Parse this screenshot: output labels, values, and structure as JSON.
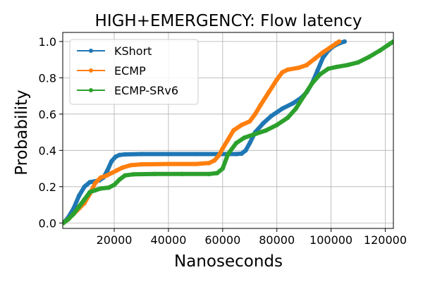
{
  "chart_data": {
    "type": "line",
    "title": "HIGH+EMERGENCY: Flow latency",
    "xlabel": "Nanoseconds",
    "ylabel": "Probability",
    "xlim": [
      1000,
      123000
    ],
    "ylim": [
      -0.03,
      1.05
    ],
    "xticks": [
      20000,
      40000,
      60000,
      80000,
      100000,
      120000
    ],
    "xtick_labels": [
      "20000",
      "40000",
      "60000",
      "80000",
      "100000",
      "120000"
    ],
    "yticks": [
      0.0,
      0.2,
      0.4,
      0.6,
      0.8,
      1.0
    ],
    "ytick_labels": [
      "0.0",
      "0.2",
      "0.4",
      "0.6",
      "0.8",
      "1.0"
    ],
    "grid": true,
    "legend_position": "upper-left",
    "series": [
      {
        "name": "KShort",
        "color": "#1f77b4",
        "x": [
          1200,
          3000,
          5000,
          7000,
          9000,
          11000,
          13000,
          14500,
          16000,
          17500,
          19000,
          20500,
          22000,
          24000,
          30000,
          40000,
          50000,
          58000,
          62000,
          65000,
          67000,
          68500,
          70000,
          72000,
          75000,
          78000,
          82000,
          86000,
          89000,
          91000,
          93000,
          95000,
          97000,
          99000,
          101000,
          103000,
          105000
        ],
        "y": [
          0.0,
          0.03,
          0.08,
          0.15,
          0.2,
          0.225,
          0.23,
          0.235,
          0.25,
          0.29,
          0.34,
          0.365,
          0.375,
          0.378,
          0.38,
          0.38,
          0.38,
          0.38,
          0.38,
          0.38,
          0.382,
          0.4,
          0.44,
          0.5,
          0.55,
          0.59,
          0.63,
          0.66,
          0.69,
          0.72,
          0.77,
          0.84,
          0.91,
          0.95,
          0.975,
          0.99,
          1.0
        ]
      },
      {
        "name": "ECMP",
        "color": "#ff7f0e",
        "x": [
          1200,
          3000,
          5000,
          7000,
          9000,
          11000,
          13000,
          15000,
          17000,
          19000,
          21000,
          23000,
          26000,
          30000,
          40000,
          50000,
          55000,
          57000,
          58500,
          60000,
          62000,
          64000,
          67000,
          70000,
          72000,
          74000,
          77000,
          80000,
          82000,
          84000,
          88000,
          91000,
          94000,
          97000,
          100000,
          102000,
          103000
        ],
        "y": [
          0.0,
          0.02,
          0.05,
          0.08,
          0.11,
          0.16,
          0.22,
          0.25,
          0.26,
          0.275,
          0.29,
          0.305,
          0.318,
          0.323,
          0.325,
          0.325,
          0.33,
          0.345,
          0.37,
          0.41,
          0.46,
          0.51,
          0.54,
          0.56,
          0.6,
          0.65,
          0.72,
          0.79,
          0.83,
          0.845,
          0.855,
          0.87,
          0.905,
          0.94,
          0.97,
          0.99,
          1.0
        ]
      },
      {
        "name": "ECMP-SRv6",
        "color": "#2ca02c",
        "x": [
          1200,
          3000,
          5000,
          7000,
          9000,
          11000,
          13000,
          15000,
          18000,
          20000,
          22000,
          24000,
          27000,
          35000,
          45000,
          55000,
          58000,
          60000,
          62000,
          65000,
          68000,
          72000,
          76000,
          80000,
          84000,
          87000,
          90000,
          93000,
          96000,
          99000,
          102000,
          106000,
          110000,
          114000,
          118000,
          121000,
          123000
        ],
        "y": [
          0.0,
          0.02,
          0.05,
          0.09,
          0.13,
          0.17,
          0.18,
          0.19,
          0.195,
          0.21,
          0.24,
          0.262,
          0.268,
          0.27,
          0.27,
          0.27,
          0.275,
          0.3,
          0.38,
          0.44,
          0.47,
          0.49,
          0.51,
          0.54,
          0.58,
          0.63,
          0.7,
          0.77,
          0.82,
          0.85,
          0.86,
          0.87,
          0.885,
          0.915,
          0.95,
          0.98,
          1.0
        ]
      }
    ]
  }
}
